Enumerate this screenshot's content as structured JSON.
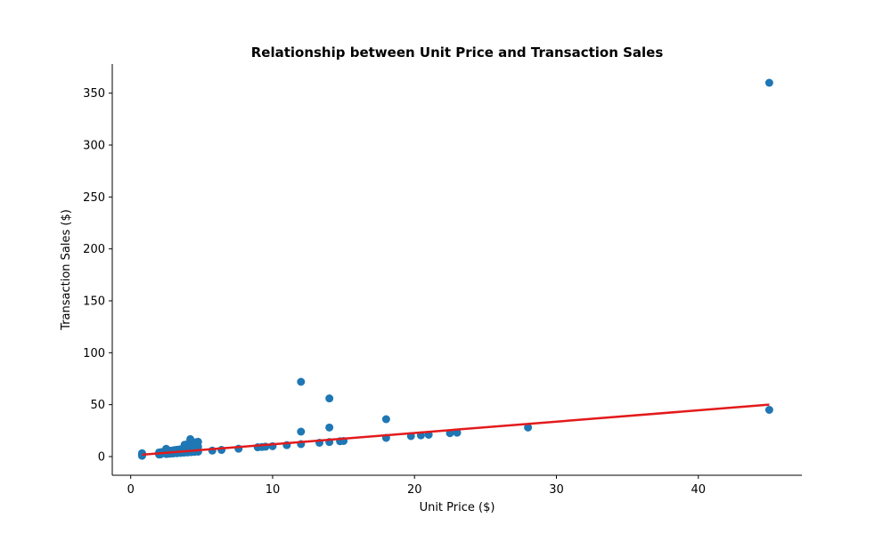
{
  "chart_data": {
    "type": "scatter",
    "title": "Relationship between Unit Price and Transaction Sales",
    "xlabel": "Unit Price ($)",
    "ylabel": "Transaction Sales ($)",
    "xlim": [
      -1.3,
      47.3
    ],
    "ylim": [
      -18,
      378
    ],
    "xticks": [
      0,
      10,
      20,
      30,
      40
    ],
    "yticks": [
      0,
      50,
      100,
      150,
      200,
      250,
      300,
      350
    ],
    "grid": false,
    "colors": {
      "points": "#1f77b4",
      "trend": "#e31a1c"
    },
    "series": [
      {
        "type": "scatter",
        "points": [
          [
            0.8,
            0.8
          ],
          [
            0.8,
            1.6
          ],
          [
            0.8,
            2.4
          ],
          [
            0.8,
            3.2
          ],
          [
            2.0,
            2.0
          ],
          [
            2.0,
            4.0
          ],
          [
            2.1,
            2.1
          ],
          [
            2.2,
            4.4
          ],
          [
            2.3,
            4.6
          ],
          [
            2.5,
            2.5
          ],
          [
            2.5,
            5.0
          ],
          [
            2.5,
            7.5
          ],
          [
            2.6,
            2.6
          ],
          [
            2.7,
            5.4
          ],
          [
            2.8,
            2.8
          ],
          [
            2.8,
            5.6
          ],
          [
            3.0,
            3.0
          ],
          [
            3.0,
            6.0
          ],
          [
            3.1,
            6.2
          ],
          [
            3.25,
            3.25
          ],
          [
            3.25,
            6.5
          ],
          [
            3.4,
            6.8
          ],
          [
            3.5,
            3.5
          ],
          [
            3.5,
            7.0
          ],
          [
            3.6,
            7.2
          ],
          [
            3.75,
            3.75
          ],
          [
            3.75,
            7.5
          ],
          [
            3.8,
            11.4
          ],
          [
            3.9,
            7.8
          ],
          [
            4.0,
            4.0
          ],
          [
            4.0,
            8.0
          ],
          [
            4.0,
            12.0
          ],
          [
            4.1,
            8.2
          ],
          [
            4.25,
            4.25
          ],
          [
            4.25,
            8.5
          ],
          [
            4.3,
            12.9
          ],
          [
            4.2,
            16.8
          ],
          [
            4.4,
            8.8
          ],
          [
            4.5,
            4.5
          ],
          [
            4.5,
            9.0
          ],
          [
            4.6,
            13.8
          ],
          [
            4.75,
            4.75
          ],
          [
            4.75,
            9.5
          ],
          [
            4.75,
            14.25
          ],
          [
            5.75,
            5.75
          ],
          [
            6.4,
            6.4
          ],
          [
            7.6,
            7.6
          ],
          [
            8.95,
            8.95
          ],
          [
            9.25,
            9.25
          ],
          [
            9.5,
            9.5
          ],
          [
            10.0,
            10.0
          ],
          [
            11.0,
            11.0
          ],
          [
            12.0,
            12.0
          ],
          [
            12.0,
            24.0
          ],
          [
            12.0,
            72.0
          ],
          [
            13.3,
            13.3
          ],
          [
            14.0,
            14.0
          ],
          [
            14.0,
            28.0
          ],
          [
            14.0,
            56.0
          ],
          [
            14.75,
            14.75
          ],
          [
            15.0,
            15.0
          ],
          [
            18.0,
            18.0
          ],
          [
            18.0,
            36.0
          ],
          [
            19.75,
            19.75
          ],
          [
            20.45,
            20.45
          ],
          [
            21.0,
            21.0
          ],
          [
            22.5,
            22.5
          ],
          [
            23.0,
            23.0
          ],
          [
            28.0,
            28.0
          ],
          [
            45.0,
            45.0
          ],
          [
            45.0,
            360.0
          ]
        ]
      },
      {
        "type": "line",
        "points": [
          [
            0.8,
            1.8
          ],
          [
            45.0,
            50.0
          ]
        ]
      }
    ]
  }
}
